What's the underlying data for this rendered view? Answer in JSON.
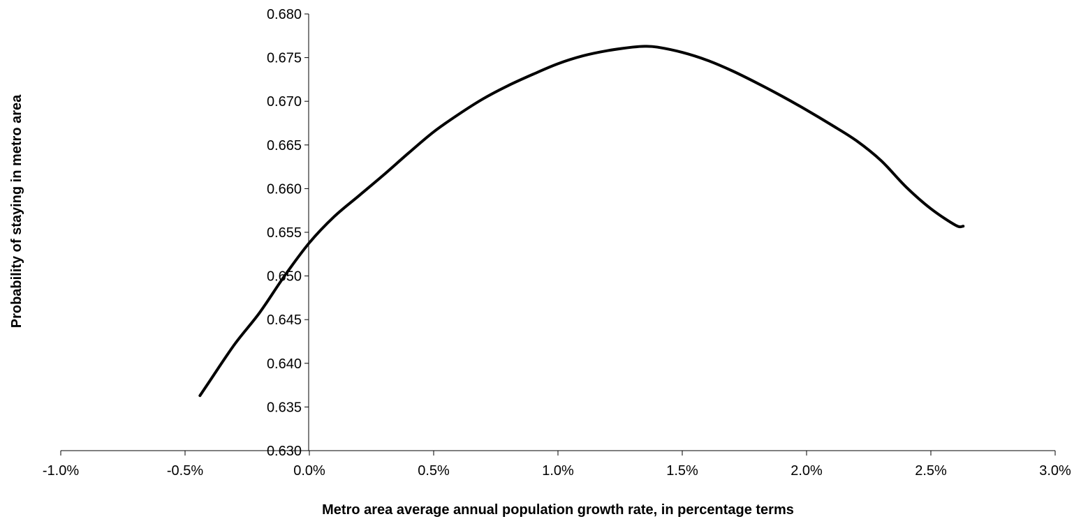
{
  "chart_data": {
    "type": "line",
    "title": "",
    "xlabel": "Metro area average annual population growth rate, in percentage terms",
    "ylabel": "Probability of staying in metro area",
    "xlim": [
      -1.0,
      3.0
    ],
    "ylim": [
      0.63,
      0.68
    ],
    "x_ticks": [
      -1.0,
      -0.5,
      0.0,
      0.5,
      1.0,
      1.5,
      2.0,
      2.5,
      3.0
    ],
    "x_tick_labels": [
      "-1.0%",
      "-0.5%",
      "0.0%",
      "0.5%",
      "1.0%",
      "1.5%",
      "2.0%",
      "2.5%",
      "3.0%"
    ],
    "y_ticks": [
      0.63,
      0.635,
      0.64,
      0.645,
      0.65,
      0.655,
      0.66,
      0.665,
      0.67,
      0.675,
      0.68
    ],
    "y_tick_labels": [
      "0.630",
      "0.635",
      "0.640",
      "0.645",
      "0.650",
      "0.655",
      "0.660",
      "0.665",
      "0.670",
      "0.675",
      "0.680"
    ],
    "grid": false,
    "legend": "none",
    "series_color": "#000000",
    "series": [
      {
        "x": [
          -0.44,
          -0.4,
          -0.3,
          -0.2,
          -0.1,
          0.0,
          0.1,
          0.2,
          0.3,
          0.4,
          0.5,
          0.6,
          0.7,
          0.8,
          0.9,
          1.0,
          1.1,
          1.2,
          1.3,
          1.35,
          1.4,
          1.5,
          1.6,
          1.7,
          1.8,
          1.9,
          2.0,
          2.1,
          2.2,
          2.3,
          2.4,
          2.5,
          2.6,
          2.63
        ],
        "y": [
          0.6363,
          0.638,
          0.6422,
          0.6458,
          0.65,
          0.6538,
          0.6568,
          0.6592,
          0.6616,
          0.6641,
          0.6665,
          0.6685,
          0.6703,
          0.6718,
          0.6731,
          0.6743,
          0.6752,
          0.6758,
          0.6762,
          0.6763,
          0.6762,
          0.6756,
          0.6747,
          0.6735,
          0.6721,
          0.6706,
          0.669,
          0.6673,
          0.6655,
          0.6632,
          0.6602,
          0.6577,
          0.6558,
          0.6557
        ]
      }
    ]
  }
}
